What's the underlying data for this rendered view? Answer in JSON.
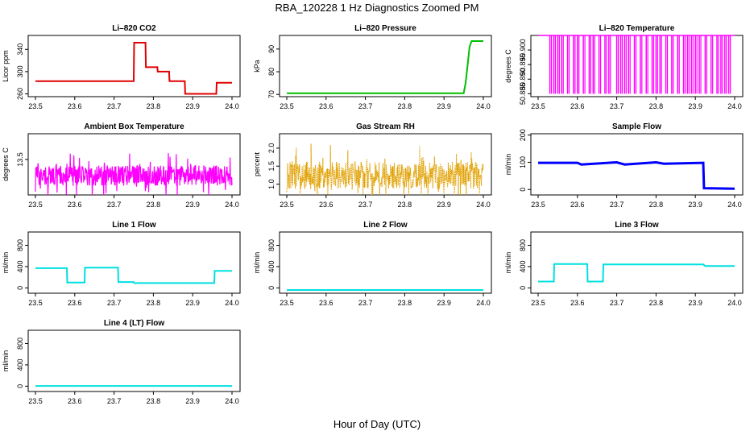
{
  "page_title": "RBA_120228  1 Hz Diagnostics Zoomed PM",
  "x_axis_label": "Hour of Day (UTC)",
  "chart_data": [
    {
      "type": "line",
      "title": "Li–820 CO2",
      "ylabel": "Licor ppm",
      "color": "#e00000",
      "xlim": [
        23.5,
        24.0
      ],
      "ylim": [
        255,
        365
      ],
      "x_ticks": [
        "23.5",
        "23.6",
        "23.7",
        "23.8",
        "23.9",
        "24.0"
      ],
      "y_ticks": [
        "260",
        "300",
        "340"
      ],
      "series": [
        {
          "x": [
            23.5,
            23.75,
            23.751,
            23.78,
            23.781,
            23.81,
            23.811,
            23.84,
            23.841,
            23.88,
            23.881,
            23.96,
            23.961,
            24.0
          ],
          "y": [
            283,
            283,
            352,
            352,
            308,
            308,
            300,
            300,
            283,
            283,
            260,
            260,
            280,
            280
          ]
        }
      ]
    },
    {
      "type": "line",
      "title": "Li–820 Pressure",
      "ylabel": "kPa",
      "color": "#00c000",
      "xlim": [
        23.5,
        24.0
      ],
      "ylim": [
        69,
        96
      ],
      "x_ticks": [
        "23.5",
        "23.6",
        "23.7",
        "23.8",
        "23.9",
        "24.0"
      ],
      "y_ticks": [
        "70",
        "80",
        "90"
      ],
      "series": [
        {
          "x": [
            23.5,
            23.95,
            23.955,
            23.96,
            23.965,
            23.97,
            24.0
          ],
          "y": [
            70.5,
            70.5,
            75,
            83,
            91,
            93.5,
            93.5
          ]
        }
      ]
    },
    {
      "type": "line",
      "title": "Li–820 Temperature",
      "ylabel": "degrees C",
      "color": "#ff00ff",
      "xlim": [
        23.5,
        24.0
      ],
      "ylim": [
        50.884,
        50.905
      ],
      "x_ticks": [
        "23.5",
        "23.6",
        "23.7",
        "23.8",
        "23.9",
        "24.0"
      ],
      "y_ticks": [
        "50.885",
        "50.890",
        "50.895",
        "50.900"
      ],
      "series": [
        {
          "base": 50.905,
          "low": 50.885,
          "dips": [
            23.53,
            23.54,
            23.55,
            23.56,
            23.575,
            23.59,
            23.6,
            23.615,
            23.63,
            23.64,
            23.655,
            23.67,
            23.68,
            23.7,
            23.71,
            23.72,
            23.73,
            23.745,
            23.76,
            23.775,
            23.79,
            23.8,
            23.81,
            23.825,
            23.84,
            23.855,
            23.87,
            23.88,
            23.89,
            23.9,
            23.91,
            23.925,
            23.94,
            23.955,
            23.965,
            23.975,
            23.985
          ]
        }
      ]
    },
    {
      "type": "line",
      "title": "Ambient Box Temperature",
      "ylabel": "degrees C",
      "color": "#ff00ff",
      "xlim": [
        23.5,
        24.0
      ],
      "ylim": [
        12.4,
        14.3
      ],
      "x_ticks": [
        "23.5",
        "23.6",
        "23.7",
        "23.8",
        "23.9",
        "24.0"
      ],
      "y_ticks": [
        "13.5"
      ],
      "series": [
        {
          "mean": 13.0,
          "amplitude": 0.45
        }
      ]
    },
    {
      "type": "line",
      "title": "Gas Stream RH",
      "ylabel": "percent",
      "color": "#e0a000",
      "xlim": [
        23.5,
        24.0
      ],
      "ylim": [
        0.7,
        2.4
      ],
      "x_ticks": [
        "23.5",
        "23.6",
        "23.7",
        "23.8",
        "23.9",
        "24.0"
      ],
      "y_ticks": [
        "1.0",
        "1.5",
        "2.0"
      ],
      "series": [
        {
          "mean": 1.25,
          "amplitude": 0.55
        }
      ]
    },
    {
      "type": "line",
      "title": "Sample Flow",
      "ylabel": "ml/min",
      "color": "#0000ff",
      "xlim": [
        23.5,
        24.0
      ],
      "ylim": [
        -20,
        205
      ],
      "x_ticks": [
        "23.5",
        "23.6",
        "23.7",
        "23.8",
        "23.9",
        "24.0"
      ],
      "y_ticks": [
        "0",
        "100",
        "200"
      ],
      "series": [
        {
          "x": [
            23.5,
            23.6,
            23.61,
            23.7,
            23.72,
            23.8,
            23.82,
            23.92,
            23.922,
            24.0
          ],
          "y": [
            98,
            98,
            92,
            100,
            92,
            100,
            95,
            98,
            5,
            3
          ]
        }
      ]
    },
    {
      "type": "line",
      "title": "Line 1 Flow",
      "ylabel": "ml/min",
      "color": "#00e0e0",
      "xlim": [
        23.5,
        24.0
      ],
      "ylim": [
        -100,
        1050
      ],
      "x_ticks": [
        "23.5",
        "23.6",
        "23.7",
        "23.8",
        "23.9",
        "24.0"
      ],
      "y_ticks": [
        "0",
        "400",
        "800"
      ],
      "series": [
        {
          "x": [
            23.5,
            23.58,
            23.581,
            23.625,
            23.626,
            23.71,
            23.711,
            23.75,
            23.751,
            23.955,
            23.956,
            24.0
          ],
          "y": [
            370,
            370,
            100,
            100,
            380,
            380,
            110,
            110,
            90,
            90,
            320,
            320
          ]
        }
      ]
    },
    {
      "type": "line",
      "title": "Line 2 Flow",
      "ylabel": "ml/min",
      "color": "#00e0e0",
      "xlim": [
        23.5,
        24.0
      ],
      "ylim": [
        -100,
        1050
      ],
      "x_ticks": [
        "23.5",
        "23.6",
        "23.7",
        "23.8",
        "23.9",
        "24.0"
      ],
      "y_ticks": [
        "0",
        "400",
        "800"
      ],
      "series": [
        {
          "x": [
            23.5,
            24.0
          ],
          "y": [
            -40,
            -40
          ]
        }
      ]
    },
    {
      "type": "line",
      "title": "Line 3 Flow",
      "ylabel": "ml/min",
      "color": "#00e0e0",
      "xlim": [
        23.5,
        24.0
      ],
      "ylim": [
        -100,
        1050
      ],
      "x_ticks": [
        "23.5",
        "23.6",
        "23.7",
        "23.8",
        "23.9",
        "24.0"
      ],
      "y_ticks": [
        "0",
        "400",
        "800"
      ],
      "series": [
        {
          "x": [
            23.5,
            23.54,
            23.541,
            23.625,
            23.626,
            23.665,
            23.666,
            23.92,
            23.925,
            24.0
          ],
          "y": [
            120,
            120,
            450,
            450,
            120,
            120,
            440,
            440,
            410,
            410
          ]
        }
      ]
    },
    {
      "type": "line",
      "title": "Line 4 (LT) Flow",
      "ylabel": "ml/min",
      "color": "#00e0e0",
      "xlim": [
        23.5,
        24.0
      ],
      "ylim": [
        -100,
        1050
      ],
      "x_ticks": [
        "23.5",
        "23.6",
        "23.7",
        "23.8",
        "23.9",
        "24.0"
      ],
      "y_ticks": [
        "0",
        "400",
        "800"
      ],
      "series": [
        {
          "x": [
            23.5,
            24.0
          ],
          "y": [
            5,
            5
          ]
        }
      ]
    }
  ]
}
